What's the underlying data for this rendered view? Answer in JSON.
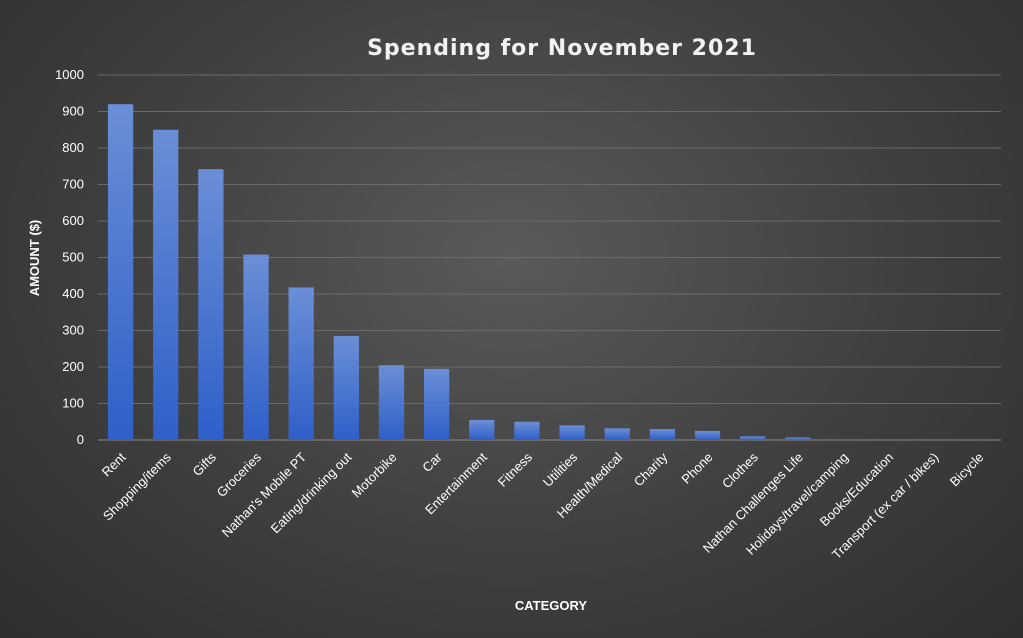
{
  "chart_data": {
    "type": "bar",
    "title": "Spending for November 2021",
    "xlabel": "CATEGORY",
    "ylabel": "AMOUNT ($)",
    "ylim": [
      0,
      1000
    ],
    "yticks": [
      "0",
      "100",
      "200",
      "300",
      "400",
      "500",
      "600",
      "700",
      "800",
      "900",
      "1000"
    ],
    "grid": true,
    "colors": {
      "bar_top": "#6b8fd6",
      "bar_bottom": "#2f5fc9"
    },
    "categories": [
      "Rent",
      "Shopping/items",
      "Gifts",
      "Groceries",
      "Nathan's Mobile PT",
      "Eating/drinking out",
      "Motorbike",
      "Car",
      "Entertainment",
      "Fitness",
      "Utilities",
      "Health/Medical",
      "Charity",
      "Phone",
      "Clothes",
      "Nathan Challenges Life",
      "Holidays/travel/camping",
      "Books/Education",
      "Transport (ex car / bikes)",
      "Bicycle"
    ],
    "values": [
      920,
      850,
      742,
      508,
      418,
      285,
      205,
      195,
      55,
      50,
      40,
      32,
      30,
      25,
      10,
      7,
      0,
      0,
      0,
      0
    ]
  }
}
